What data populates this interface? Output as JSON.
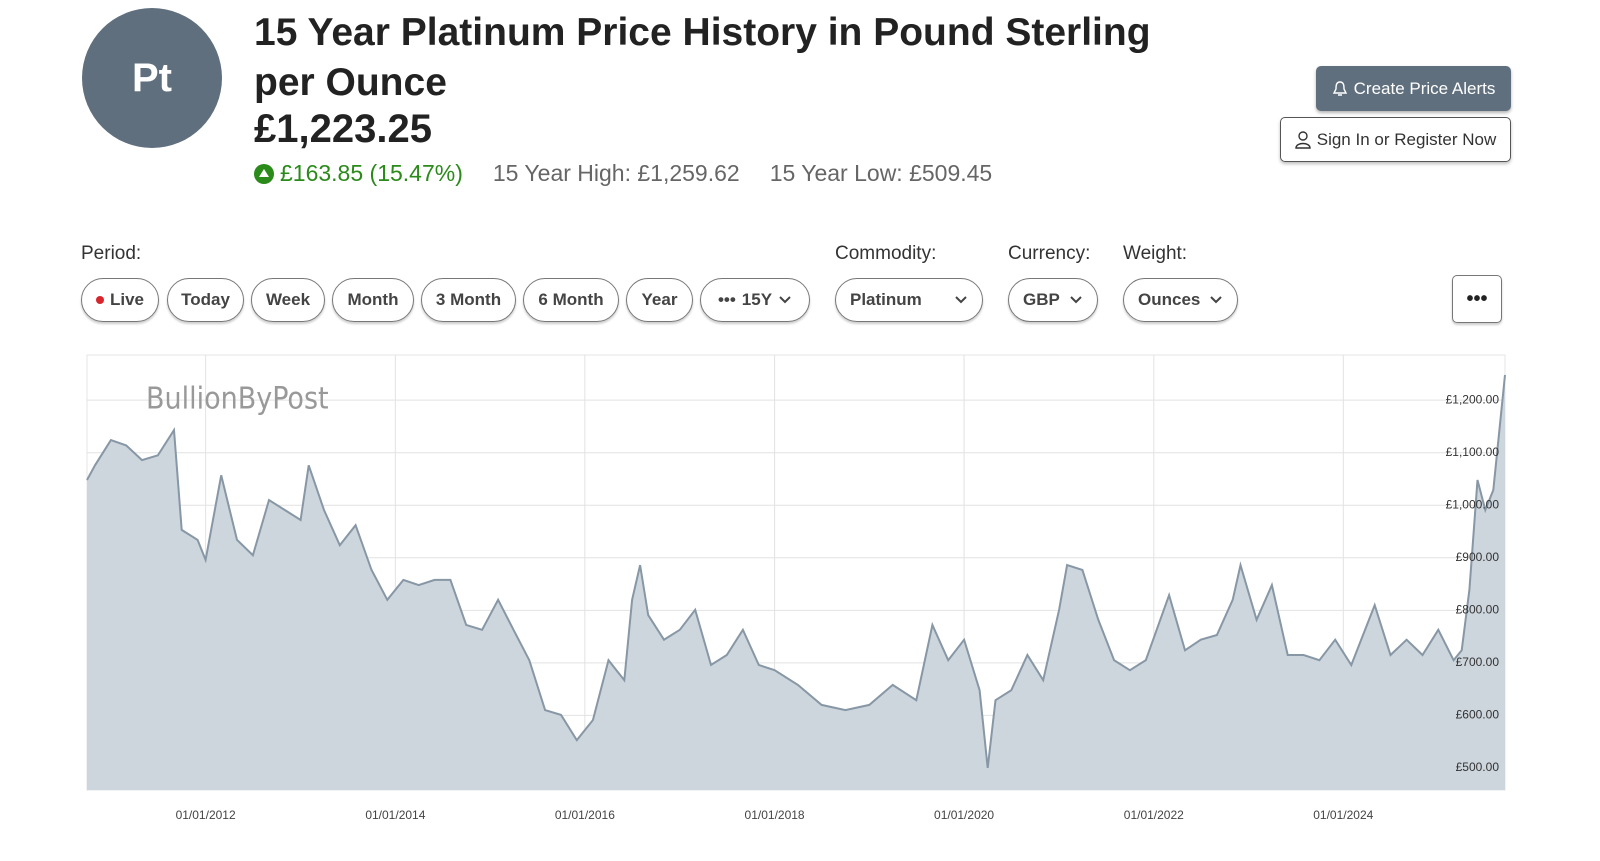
{
  "header": {
    "symbol": "Pt",
    "title": "15 Year Platinum Price History in Pound Sterling per Ounce",
    "price": "£1,223.25",
    "change": "£163.85 (15.47%)",
    "high": "15 Year High: £1,259.62",
    "low": "15 Year Low: £509.45",
    "alerts_button": "Create Price Alerts",
    "sign_in_button": "Sign In or Register Now"
  },
  "controls": {
    "period_label": "Period:",
    "periods": [
      "Live",
      "Today",
      "Week",
      "Month",
      "3 Month",
      "6 Month",
      "Year",
      "15Y"
    ],
    "commodity_label": "Commodity:",
    "commodity": "Platinum",
    "currency_label": "Currency:",
    "currency": "GBP",
    "weight_label": "Weight:",
    "weight": "Ounces"
  },
  "chart_data": {
    "type": "area",
    "watermark": "BullionByPost",
    "x": [
      "01/10/2010",
      "01/11/2010",
      "01/01/2011",
      "01/03/2011",
      "01/05/2011",
      "01/07/2011",
      "01/09/2011",
      "01/10/2011",
      "01/12/2011",
      "01/01/2012",
      "01/03/2012",
      "01/05/2012",
      "01/07/2012",
      "01/09/2012",
      "01/11/2012",
      "01/01/2013",
      "01/02/2013",
      "01/04/2013",
      "01/06/2013",
      "01/08/2013",
      "01/10/2013",
      "01/12/2013",
      "01/02/2014",
      "01/04/2014",
      "01/06/2014",
      "01/08/2014",
      "01/10/2014",
      "01/12/2014",
      "01/02/2015",
      "01/04/2015",
      "01/06/2015",
      "01/08/2015",
      "01/10/2015",
      "01/12/2015",
      "01/02/2016",
      "01/04/2016",
      "01/06/2016",
      "01/07/2016",
      "01/08/2016",
      "01/09/2016",
      "01/11/2016",
      "01/01/2017",
      "01/03/2017",
      "01/05/2017",
      "01/07/2017",
      "01/09/2017",
      "01/11/2017",
      "01/01/2018",
      "01/04/2018",
      "01/07/2018",
      "01/10/2018",
      "01/01/2019",
      "01/04/2019",
      "01/07/2019",
      "01/09/2019",
      "01/11/2019",
      "01/01/2020",
      "01/03/2020",
      "01/04/2020",
      "01/05/2020",
      "01/07/2020",
      "01/09/2020",
      "01/11/2020",
      "01/01/2021",
      "01/02/2021",
      "01/04/2021",
      "01/06/2021",
      "01/08/2021",
      "01/10/2021",
      "01/12/2021",
      "01/03/2022",
      "01/05/2022",
      "01/07/2022",
      "01/09/2022",
      "01/11/2022",
      "01/12/2022",
      "01/02/2023",
      "01/04/2023",
      "01/06/2023",
      "01/08/2023",
      "01/10/2023",
      "01/12/2023",
      "01/02/2024",
      "01/05/2024",
      "01/07/2024",
      "01/09/2024",
      "01/11/2024",
      "01/01/2025",
      "01/03/2025",
      "01/04/2025",
      "01/05/2025",
      "01/06/2025",
      "01/07/2025",
      "01/08/2025",
      "15/09/2025"
    ],
    "series": [
      {
        "name": "Platinum",
        "color": "#8797a5",
        "fill": "#cdd5dd",
        "values": [
          1048,
          1076,
          1124,
          1114,
          1086,
          1095,
          1143,
          953,
          934,
          896,
          1057,
          934,
          905,
          1010,
          991,
          972,
          1076,
          991,
          924,
          962,
          877,
          820,
          858,
          848,
          858,
          858,
          772,
          763,
          820,
          763,
          705,
          610,
          601,
          553,
          591,
          705,
          667,
          820,
          886,
          791,
          744,
          763,
          801,
          696,
          715,
          763,
          696,
          686,
          658,
          620,
          610,
          620,
          658,
          629,
          772,
          705,
          744,
          648,
          500,
          629,
          648,
          715,
          667,
          801,
          886,
          877,
          782,
          705,
          686,
          705,
          829,
          724,
          744,
          753,
          820,
          886,
          782,
          848,
          715,
          715,
          705,
          744,
          696,
          810,
          715,
          744,
          715,
          763,
          705,
          724,
          839,
          1048,
          991,
          1029,
          1248
        ]
      }
    ],
    "xlim": [
      "01/10/2010",
      "15/09/2025"
    ],
    "xticks": [
      "01/01/2012",
      "01/01/2014",
      "01/01/2016",
      "01/01/2018",
      "01/01/2020",
      "01/01/2022",
      "01/01/2024"
    ],
    "ylim": [
      458,
      1286
    ],
    "yticks": [
      {
        "value": 500,
        "label": "£500.00"
      },
      {
        "value": 600,
        "label": "£600.00"
      },
      {
        "value": 700,
        "label": "£700.00"
      },
      {
        "value": 800,
        "label": "£800.00"
      },
      {
        "value": 900,
        "label": "£900.00"
      },
      {
        "value": 1000,
        "label": "£1,000.00"
      },
      {
        "value": 1100,
        "label": "£1,100.00"
      },
      {
        "value": 1200,
        "label": "£1,200.00"
      }
    ],
    "grid": true
  }
}
